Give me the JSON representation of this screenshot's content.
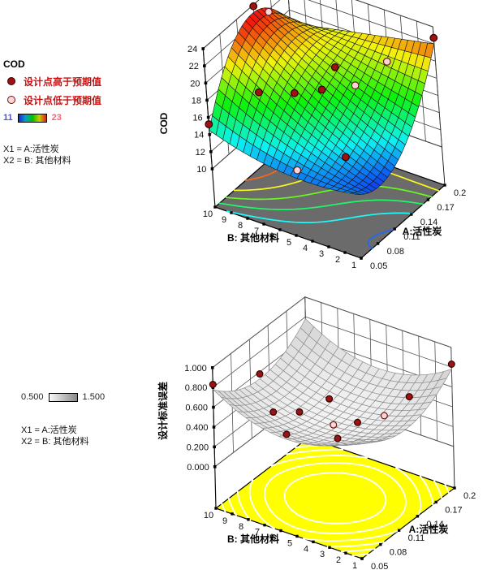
{
  "page": {
    "background": "#ffffff"
  },
  "legend_top": {
    "title": "COD",
    "above_label": "设计点高于预期值",
    "below_label": "设计点低于预期值",
    "label_color": "#cc1111",
    "scale_min": "11",
    "scale_max": "23",
    "scale_min_color": "#5252d6",
    "scale_max_color": "#ff5f6e",
    "gradient": [
      "#2222d4",
      "#00a0c8",
      "#00c000",
      "#d0c800",
      "#d42222"
    ],
    "x1_line": "X1 = A:活性炭",
    "x2_line": "X2 = B: 其他材料"
  },
  "legend_bottom": {
    "scale_min": "0.500",
    "scale_max": "1.500",
    "gradient": [
      "#fafafa",
      "#888888"
    ],
    "x1_line": "X1 = A:活性炭",
    "x2_line": "X2 = B: 其他材料"
  },
  "point_style": {
    "above_fill": "#a01212",
    "above_stroke": "#2a0000",
    "below_fill": "#ffd6d6",
    "below_stroke": "#6b1414"
  },
  "chart_data": [
    {
      "type": "surface3d",
      "response": "COD",
      "x_axis": {
        "label": "A:活性炭",
        "min": 0.05,
        "max": 0.2,
        "ticks": [
          0.05,
          0.08,
          0.11,
          0.14,
          0.17,
          0.2
        ],
        "tick_labels": [
          "0.05",
          "0.08",
          "0.11",
          "0.14",
          "0.17",
          "0.2"
        ]
      },
      "y_axis": {
        "label": "B: 其他材料",
        "min": 1,
        "max": 10,
        "ticks": [
          10,
          9,
          8,
          7,
          6,
          5,
          4,
          3,
          2,
          1
        ],
        "tick_labels": [
          "10",
          "9",
          "8",
          "7",
          "6",
          "5",
          "4",
          "3",
          "2",
          "1"
        ]
      },
      "z_axis": {
        "label": "COD",
        "min": 10,
        "max": 24,
        "ticks": [
          24,
          22,
          20,
          18,
          16,
          14,
          12,
          10
        ],
        "tick_labels": [
          "24",
          "22",
          "20",
          "18",
          "16",
          "14",
          "12",
          "10"
        ]
      },
      "colormap": {
        "style": "rainbow",
        "min": 11,
        "max": 23
      },
      "floor": {
        "fill": "#6b6b6b",
        "contour_levels": [
          12,
          14,
          16,
          18,
          20,
          22
        ]
      },
      "model": {
        "space": "normalized_xy",
        "description": "saddle response surface z=f(tA,tB); tA: A 0.05→0.2, tB: B 10→1; terms [coef, powTA, powTB]",
        "terms": [
          [
            14.5,
            0,
            0
          ],
          [
            30,
            1,
            0
          ],
          [
            -26,
            2,
            0
          ],
          [
            -6.5,
            0,
            1
          ],
          [
            -35,
            1,
            1
          ],
          [
            45,
            2,
            1
          ],
          [
            5,
            0,
            2
          ],
          [
            -5,
            1,
            2
          ]
        ]
      },
      "surface_z_range": [
        11.7,
        23.2
      ],
      "design_points": [
        {
          "A": 0.05,
          "B": 10,
          "relation": "above"
        },
        {
          "A": 0.14,
          "B": 10,
          "relation": "above"
        },
        {
          "A": 0.165,
          "B": 10,
          "relation": "below"
        },
        {
          "A": 0.2,
          "B": 1,
          "relation": "above"
        },
        {
          "A": 0.185,
          "B": 3.5,
          "relation": "below"
        },
        {
          "A": 0.155,
          "B": 4.5,
          "relation": "below"
        },
        {
          "A": 0.125,
          "B": 5.5,
          "relation": "above"
        },
        {
          "A": 0.15,
          "B": 5.5,
          "relation": "above"
        },
        {
          "A": 0.085,
          "B": 8,
          "relation": "above"
        },
        {
          "A": 0.105,
          "B": 6.5,
          "relation": "above"
        },
        {
          "A": 0.06,
          "B": 5,
          "relation": "below"
        },
        {
          "A": 0.09,
          "B": 3,
          "relation": "above"
        }
      ]
    },
    {
      "type": "surface3d",
      "response": "设计标准误差",
      "x_axis": {
        "label": "A:活性炭",
        "min": 0.05,
        "max": 0.2,
        "ticks": [
          0.05,
          0.08,
          0.11,
          0.14,
          0.17,
          0.2
        ],
        "tick_labels": [
          "0.05",
          "0.08",
          "0.11",
          "0.14",
          "0.17",
          "0.2"
        ]
      },
      "y_axis": {
        "label": "B: 其他材料",
        "min": 1,
        "max": 10,
        "ticks": [
          10,
          9,
          8,
          7,
          6,
          5,
          4,
          3,
          2,
          1
        ],
        "tick_labels": [
          "10",
          "9",
          "8",
          "7",
          "6",
          "5",
          "4",
          "3",
          "2",
          "1"
        ]
      },
      "z_axis": {
        "label": "设计标准误差",
        "min": 0,
        "max": 1,
        "ticks": [
          1.0,
          0.8,
          0.6,
          0.4,
          0.2,
          0.0
        ],
        "tick_labels": [
          "1.000",
          "0.800",
          "0.600",
          "0.400",
          "0.200",
          "0.000"
        ]
      },
      "colormap": {
        "style": "grayscale",
        "min": 0.5,
        "max": 1.5
      },
      "floor": {
        "fill": "#ffff00",
        "contour_color": "#ffffff",
        "contour_levels": [
          0.42,
          0.48,
          0.54,
          0.6,
          0.66,
          0.72
        ]
      },
      "model": {
        "space": "uv",
        "description": "std-error bowl z=f(u,v), u=2tA-1, v=2tB-1; terms [coef, powU, powV]",
        "terms": [
          [
            0.36,
            0,
            0
          ],
          [
            0.17,
            2,
            0
          ],
          [
            0.17,
            0,
            2
          ],
          [
            0.08,
            2,
            2
          ]
        ]
      },
      "surface_z_range": [
        0.36,
        0.78
      ],
      "design_points": [
        {
          "A": 0.05,
          "B": 10,
          "relation": "above"
        },
        {
          "A": 0.125,
          "B": 10,
          "relation": "above"
        },
        {
          "A": 0.0875,
          "B": 7.75,
          "relation": "above"
        },
        {
          "A": 0.05,
          "B": 5.5,
          "relation": "above"
        },
        {
          "A": 0.2,
          "B": 1,
          "relation": "above"
        },
        {
          "A": 0.17,
          "B": 2.5,
          "relation": "above"
        },
        {
          "A": 0.125,
          "B": 5.5,
          "relation": "below"
        },
        {
          "A": 0.155,
          "B": 3.5,
          "relation": "below"
        },
        {
          "A": 0.11,
          "B": 7,
          "relation": "above"
        },
        {
          "A": 0.145,
          "B": 6.5,
          "relation": "above"
        },
        {
          "A": 0.08,
          "B": 3.5,
          "relation": "above"
        },
        {
          "A": 0.125,
          "B": 4,
          "relation": "above"
        }
      ]
    }
  ]
}
